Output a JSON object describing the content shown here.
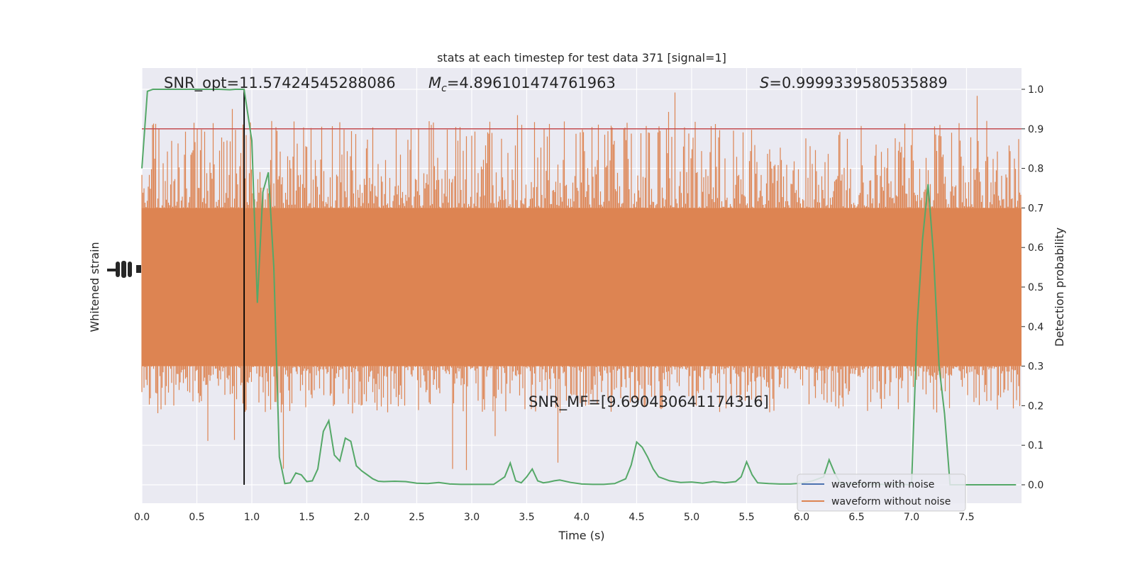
{
  "chart_data": {
    "type": "line",
    "title": "stats at each timestep for test data 371 [signal=1]",
    "xlabel": "Time (s)",
    "ylabel_left": "Whitened strain",
    "ylabel_right": "Detection probability",
    "xlim": [
      0.0,
      8.0
    ],
    "ylim_right": [
      -0.05,
      1.05
    ],
    "x_ticks": [
      "0.0",
      "0.5",
      "1.0",
      "1.5",
      "2.0",
      "2.5",
      "3.0",
      "3.5",
      "4.0",
      "4.5",
      "5.0",
      "5.5",
      "6.0",
      "6.5",
      "7.0",
      "7.5"
    ],
    "y_ticks_right": [
      "0.0",
      "0.1",
      "0.2",
      "0.3",
      "0.4",
      "0.5",
      "0.6",
      "0.7",
      "0.8",
      "0.9",
      "1.0"
    ],
    "grid": true,
    "legend_position": "lower-right",
    "annotations": {
      "snr_opt": "SNR_opt=11.57424545288086",
      "mc_symbol": "M",
      "mc_sub": "c",
      "mc_value": "=4.896101474761963",
      "s_symbol": "S",
      "s_value": "=0.9999339580535889",
      "snr_mf": "SNR_MF=[9.690430641174316]"
    },
    "threshold": {
      "y": 0.9,
      "color": "#c44e52"
    },
    "marker_line_x": 0.93,
    "series": [
      {
        "name": "waveform with noise",
        "color": "#4c72b0"
      },
      {
        "name": "waveform without noise",
        "color": "#dd8452",
        "band_y": [
          0.3,
          0.7
        ],
        "spike_range_y": [
          0.03,
          1.0
        ]
      },
      {
        "color": "#55a868",
        "x": [
          0.0,
          0.05,
          0.1,
          0.2,
          0.3,
          0.4,
          0.5,
          0.6,
          0.7,
          0.8,
          0.85,
          0.93,
          1.0,
          1.05,
          1.1,
          1.15,
          1.2,
          1.25,
          1.3,
          1.35,
          1.4,
          1.45,
          1.5,
          1.55,
          1.6,
          1.65,
          1.7,
          1.75,
          1.8,
          1.85,
          1.9,
          1.95,
          2.0,
          2.05,
          2.1,
          2.15,
          2.2,
          2.3,
          2.4,
          2.5,
          2.6,
          2.7,
          2.8,
          2.9,
          3.0,
          3.1,
          3.2,
          3.3,
          3.35,
          3.4,
          3.45,
          3.5,
          3.55,
          3.6,
          3.65,
          3.7,
          3.75,
          3.8,
          3.9,
          4.0,
          4.1,
          4.2,
          4.3,
          4.4,
          4.45,
          4.5,
          4.55,
          4.6,
          4.65,
          4.7,
          4.8,
          4.9,
          5.0,
          5.1,
          5.2,
          5.3,
          5.4,
          5.45,
          5.5,
          5.55,
          5.6,
          5.7,
          5.8,
          5.9,
          6.0,
          6.1,
          6.2,
          6.25,
          6.3,
          6.35,
          6.4,
          6.5,
          6.6,
          6.7,
          6.8,
          6.9,
          7.0,
          7.05,
          7.1,
          7.15,
          7.2,
          7.25,
          7.3,
          7.35,
          7.4,
          7.45,
          7.5,
          7.6,
          7.7,
          7.8,
          7.95
        ],
        "y": [
          0.8,
          0.995,
          1.0,
          1.0,
          1.0,
          1.0,
          1.0,
          1.0,
          1.0,
          0.999,
          1.0,
          1.0,
          0.87,
          0.46,
          0.74,
          0.79,
          0.55,
          0.07,
          0.003,
          0.005,
          0.03,
          0.025,
          0.008,
          0.01,
          0.04,
          0.135,
          0.162,
          0.075,
          0.06,
          0.118,
          0.11,
          0.048,
          0.035,
          0.025,
          0.015,
          0.009,
          0.008,
          0.009,
          0.008,
          0.004,
          0.003,
          0.006,
          0.002,
          0.001,
          0.001,
          0.001,
          0.001,
          0.02,
          0.055,
          0.01,
          0.005,
          0.02,
          0.04,
          0.01,
          0.005,
          0.007,
          0.01,
          0.012,
          0.006,
          0.002,
          0.001,
          0.001,
          0.003,
          0.015,
          0.05,
          0.108,
          0.095,
          0.07,
          0.04,
          0.02,
          0.01,
          0.006,
          0.007,
          0.004,
          0.008,
          0.005,
          0.008,
          0.02,
          0.058,
          0.025,
          0.005,
          0.003,
          0.002,
          0.002,
          0.004,
          0.01,
          0.02,
          0.063,
          0.03,
          0.005,
          0.003,
          0.002,
          0.001,
          0.001,
          0.001,
          0.001,
          0.0,
          0.4,
          0.62,
          0.76,
          0.58,
          0.3,
          0.18,
          0.0,
          0.0,
          0.0,
          0.0,
          0.0,
          0.0,
          0.0,
          0.0
        ]
      }
    ]
  }
}
